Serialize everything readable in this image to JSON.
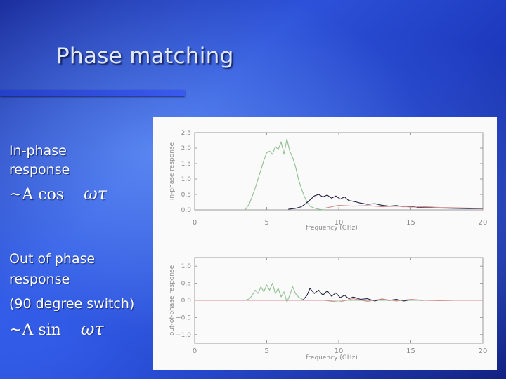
{
  "slide": {
    "title": "Phase matching",
    "inphase": {
      "line1": "In-phase",
      "line2": "response",
      "formula": "~A cos",
      "symbol": "ωτ"
    },
    "outphase": {
      "line1": "Out of phase",
      "line2": "response",
      "line3": "(90 degree switch)",
      "formula": "~A sin",
      "symbol": "ωτ"
    }
  },
  "chart_data": [
    {
      "type": "line",
      "title": "",
      "xlabel": "frequency (GHz)",
      "ylabel": "in-phase response",
      "xlim": [
        0,
        20
      ],
      "ylim": [
        0,
        2.5
      ],
      "xticks": [
        0,
        5,
        10,
        15,
        20
      ],
      "yticks": [
        0.0,
        0.5,
        1.0,
        1.5,
        2.0,
        2.5
      ],
      "ytick_labels": [
        "0.0",
        "0.5",
        "1.0",
        "1.5",
        "2.0",
        "2.5"
      ],
      "grid": false,
      "series": [
        {
          "color": "#90c090",
          "x": [
            3.5,
            3.8,
            4.0,
            4.2,
            4.4,
            4.6,
            4.8,
            5.0,
            5.2,
            5.4,
            5.6,
            5.8,
            6.0,
            6.2,
            6.4,
            6.6,
            6.8,
            7.0,
            7.2,
            7.4,
            7.6,
            7.8,
            8.0,
            8.3,
            8.6,
            9.0
          ],
          "y": [
            0.0,
            0.2,
            0.45,
            0.7,
            1.0,
            1.3,
            1.6,
            1.85,
            1.9,
            1.8,
            2.05,
            1.95,
            2.2,
            1.8,
            2.3,
            1.9,
            1.7,
            1.4,
            1.0,
            0.7,
            0.45,
            0.25,
            0.12,
            0.06,
            0.02,
            0.0
          ]
        },
        {
          "color": "#202040",
          "x": [
            6.5,
            7.0,
            7.4,
            7.7,
            8.0,
            8.3,
            8.6,
            8.9,
            9.2,
            9.5,
            9.8,
            10.1,
            10.4,
            10.7,
            11.0,
            11.5,
            12.0,
            12.5,
            13.0,
            13.5,
            14.0,
            14.5,
            15.0,
            15.5,
            16.0,
            17.0,
            18.0,
            19.0,
            20.0
          ],
          "y": [
            0.02,
            0.05,
            0.1,
            0.2,
            0.32,
            0.45,
            0.5,
            0.42,
            0.48,
            0.38,
            0.45,
            0.35,
            0.42,
            0.3,
            0.28,
            0.22,
            0.18,
            0.2,
            0.15,
            0.12,
            0.14,
            0.1,
            0.12,
            0.08,
            0.07,
            0.06,
            0.05,
            0.04,
            0.04
          ]
        },
        {
          "color": "#d09090",
          "x": [
            9.0,
            10.0,
            11.0,
            12.0,
            13.0,
            14.0,
            15.0,
            16.0,
            17.0,
            18.0,
            19.0,
            20.0
          ],
          "y": [
            0.05,
            0.15,
            0.12,
            0.14,
            0.1,
            0.12,
            0.09,
            0.1,
            0.08,
            0.07,
            0.06,
            0.05
          ]
        }
      ]
    },
    {
      "type": "line",
      "title": "",
      "xlabel": "frequency (GHz)",
      "ylabel": "out-of-phase response",
      "xlim": [
        0,
        20
      ],
      "ylim": [
        -1.25,
        1.25
      ],
      "xticks": [
        0,
        5,
        10,
        15,
        20
      ],
      "yticks": [
        -1.0,
        -0.5,
        0.0,
        0.5,
        1.0
      ],
      "ytick_labels": [
        "−1.0",
        "−0.5",
        "0.0",
        "0.5",
        "1.0"
      ],
      "grid": false,
      "series": [
        {
          "color": "#90c090",
          "x": [
            0,
            3.5,
            3.8,
            4.0,
            4.2,
            4.4,
            4.6,
            4.8,
            5.0,
            5.2,
            5.4,
            5.6,
            5.8,
            6.0,
            6.2,
            6.4,
            6.6,
            6.8,
            7.0,
            7.2,
            7.4,
            7.6,
            8.0,
            20
          ],
          "y": [
            0.0,
            0.0,
            0.05,
            0.15,
            0.3,
            0.2,
            0.4,
            0.25,
            0.45,
            0.3,
            0.5,
            0.2,
            0.35,
            0.1,
            0.25,
            -0.05,
            0.15,
            0.4,
            0.2,
            0.1,
            0.05,
            0.0,
            0.0,
            0.0
          ]
        },
        {
          "color": "#202040",
          "x": [
            0,
            7.5,
            7.8,
            8.0,
            8.3,
            8.6,
            8.9,
            9.2,
            9.5,
            9.8,
            10.1,
            10.4,
            10.7,
            11.0,
            11.5,
            12.0,
            12.5,
            13.0,
            13.5,
            14.0,
            14.5,
            15.0,
            16.0,
            20
          ],
          "y": [
            0.0,
            0.0,
            0.15,
            0.35,
            0.2,
            0.3,
            0.15,
            0.28,
            0.12,
            0.22,
            0.08,
            0.15,
            0.05,
            0.1,
            0.03,
            0.05,
            -0.02,
            0.04,
            0.0,
            0.03,
            -0.02,
            0.02,
            0.0,
            0.0
          ]
        },
        {
          "color": "#d09090",
          "x": [
            0,
            9.0,
            10.0,
            11.0,
            12.0,
            13.0,
            14.0,
            15.0,
            16.0,
            17.0,
            18.0,
            20.0
          ],
          "y": [
            0.0,
            0.0,
            -0.05,
            0.05,
            -0.03,
            0.04,
            -0.02,
            0.03,
            0.0,
            -0.01,
            0.0,
            0.0
          ]
        }
      ]
    }
  ]
}
